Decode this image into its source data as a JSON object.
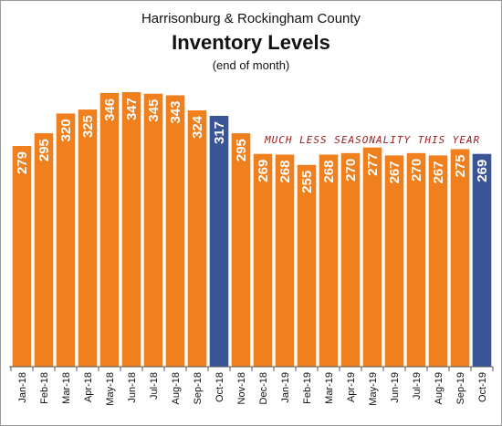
{
  "header": {
    "region": "Harrisonburg & Rockingham County",
    "title": "Inventory Levels",
    "note": "(end of month)"
  },
  "chart_data": {
    "type": "bar",
    "title": "Inventory Levels",
    "subtitle": "(end of month)",
    "xlabel": "",
    "ylabel": "",
    "ylim": [
      0,
      350
    ],
    "grid": false,
    "categories": [
      "Jan-18",
      "Feb-18",
      "Mar-18",
      "Apr-18",
      "May-18",
      "Jun-18",
      "Jul-18",
      "Aug-18",
      "Sep-18",
      "Oct-18",
      "Nov-18",
      "Dec-18",
      "Jan-19",
      "Feb-19",
      "Mar-19",
      "Apr-19",
      "May-19",
      "Jun-19",
      "Jul-19",
      "Aug-19",
      "Sep-19",
      "Oct-19"
    ],
    "values": [
      279,
      295,
      320,
      325,
      346,
      347,
      345,
      343,
      324,
      317,
      295,
      269,
      268,
      255,
      268,
      270,
      277,
      267,
      270,
      267,
      275,
      269
    ],
    "highlighted": [
      "Oct-18",
      "Oct-19"
    ],
    "colors": {
      "default": "#f07f1e",
      "highlight": "#3a5595"
    },
    "annotation": "MUCH LESS SEASONALITY THIS YEAR"
  }
}
